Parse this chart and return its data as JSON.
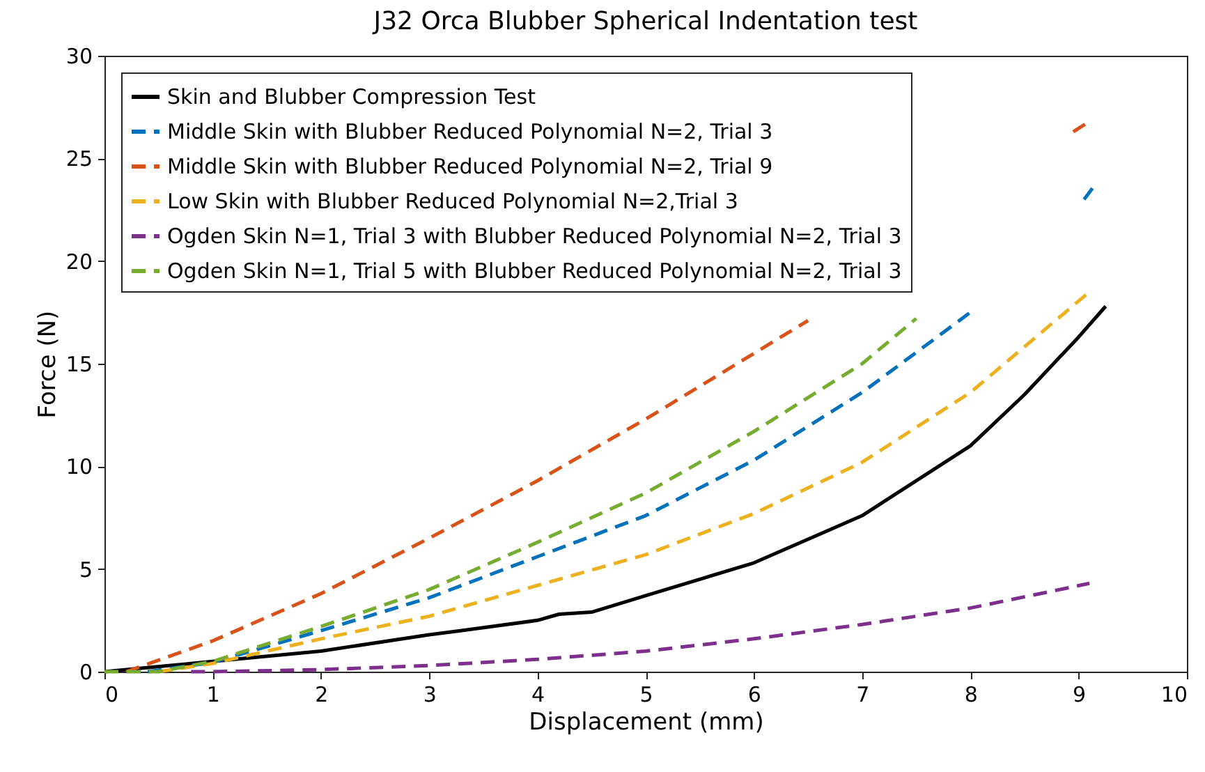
{
  "chart_data": {
    "type": "line",
    "title": "J32 Orca Blubber Spherical Indentation test",
    "xlabel": "Displacement (mm)",
    "ylabel": "Force (N)",
    "xlim": [
      0,
      10
    ],
    "ylim": [
      0,
      30
    ],
    "xticks": [
      0,
      1,
      2,
      3,
      4,
      5,
      6,
      7,
      8,
      9,
      10
    ],
    "yticks": [
      0,
      5,
      10,
      15,
      20,
      25,
      30
    ],
    "grid": false,
    "legend": "top left",
    "series": [
      {
        "name": "Skin and Blubber Compression Test",
        "color": "#000000",
        "line_style": "solid",
        "x": [
          0,
          1,
          2,
          3,
          3.3,
          4,
          4.2,
          4.5,
          5,
          6,
          7,
          8,
          8.5,
          9,
          9.25
        ],
        "values": [
          0,
          0.5,
          1.0,
          1.8,
          2.0,
          2.5,
          2.8,
          2.9,
          3.7,
          5.3,
          7.6,
          11,
          13.5,
          16.3,
          17.8
        ]
      },
      {
        "name": "Middle Skin with Blubber Reduced Polynomial N=2, Trial 3",
        "color": "#0072bd",
        "line_style": "dashed",
        "x": [
          0.4,
          1,
          2,
          3,
          4,
          5,
          6,
          7,
          8,
          8.5,
          9.05,
          9.15
        ],
        "values": [
          0,
          0.45,
          2.0,
          3.6,
          5.6,
          7.6,
          10.3,
          13.6,
          17.5,
          null,
          23.0,
          23.7
        ]
      },
      {
        "name": "Middle Skin with Blubber Reduced Polynomial N=2, Trial 9",
        "color": "#d95319",
        "line_style": "dashed",
        "x": [
          0.2,
          1,
          2,
          3,
          4,
          5,
          6,
          6.5,
          7.5,
          8.95,
          9.1
        ],
        "values": [
          0,
          1.5,
          3.8,
          6.5,
          9.3,
          12.3,
          15.5,
          17.1,
          null,
          26.3,
          26.8
        ]
      },
      {
        "name": "Low Skin with Blubber Reduced Polynomial N=2,Trial 3",
        "color": "#edb120",
        "line_style": "dashed",
        "x": [
          0.5,
          1,
          2,
          3,
          4,
          5,
          6,
          7,
          8,
          9.1
        ],
        "values": [
          0,
          0.4,
          1.6,
          2.7,
          4.2,
          5.7,
          7.7,
          10.2,
          13.6,
          18.5
        ]
      },
      {
        "name": "Ogden Skin N=1, Trial 3 with Blubber Reduced Polynomial N=2, Trial 3",
        "color": "#7e2f8e",
        "line_style": "dashed",
        "x": [
          0.8,
          1,
          2,
          3,
          4,
          5,
          6,
          7,
          8,
          9.1
        ],
        "values": [
          0,
          0,
          0.1,
          0.3,
          0.6,
          1.0,
          1.6,
          2.3,
          3.1,
          4.3
        ]
      },
      {
        "name": "Ogden Skin N=1, Trial 5 with Blubber Reduced Polynomial N=2, Trial 3",
        "color": "#77ac30",
        "line_style": "dashed",
        "x": [
          0,
          0.5,
          1,
          2,
          3,
          4,
          5,
          6,
          7,
          7.5
        ],
        "values": [
          0,
          0,
          0.5,
          2.2,
          4.0,
          6.3,
          8.7,
          11.7,
          15.0,
          17.2
        ]
      }
    ]
  }
}
